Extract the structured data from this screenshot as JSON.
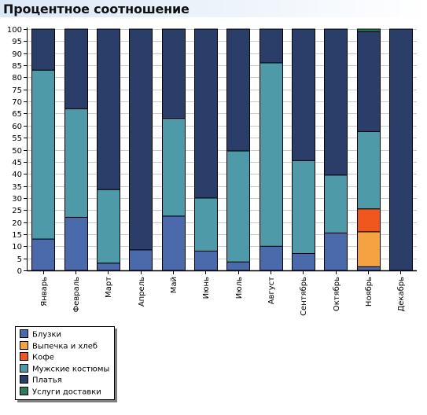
{
  "title": "Процентное соотношение",
  "chart_data": {
    "type": "bar",
    "stacked": true,
    "categories": [
      "Январь",
      "Февраль",
      "Март",
      "Апрель",
      "Май",
      "Июнь",
      "Июль",
      "Август",
      "Сентябрь",
      "Октябрь",
      "Ноябрь",
      "Декабрь"
    ],
    "ylim": [
      0,
      100
    ],
    "yticks": [
      0,
      5,
      10,
      15,
      20,
      25,
      30,
      35,
      40,
      45,
      50,
      55,
      60,
      65,
      70,
      75,
      80,
      85,
      90,
      95,
      100
    ],
    "grid": true,
    "legend_position": "bottom-left",
    "series": [
      {
        "name": "Блузки",
        "color": "#4b6aab",
        "values": [
          13,
          22,
          3,
          8.5,
          22.5,
          8,
          3.5,
          10,
          7,
          15.5,
          1.5,
          0
        ]
      },
      {
        "name": "Выпечка и хлеб",
        "color": "#f4a242",
        "values": [
          0,
          0,
          0,
          0,
          0,
          0,
          0,
          0,
          0,
          0,
          14.5,
          0
        ]
      },
      {
        "name": "Кофе",
        "color": "#f0571f",
        "values": [
          0,
          0,
          0,
          0,
          0,
          0,
          0,
          0,
          0,
          0,
          9.5,
          0
        ]
      },
      {
        "name": "Мужские костюмы",
        "color": "#4e9aa8",
        "values": [
          70,
          45,
          30.5,
          0,
          40.5,
          22,
          46,
          76,
          38.5,
          24,
          32,
          0
        ]
      },
      {
        "name": "Платья",
        "color": "#2b3d69",
        "values": [
          17,
          33,
          66.5,
          91.5,
          37,
          70,
          50.5,
          14,
          54.5,
          60.5,
          41.5,
          100
        ]
      },
      {
        "name": "Услуги доставки",
        "color": "#2e7a5a",
        "values": [
          0,
          0,
          0,
          0,
          0,
          0,
          0,
          0,
          0,
          0,
          1,
          0
        ]
      }
    ]
  }
}
